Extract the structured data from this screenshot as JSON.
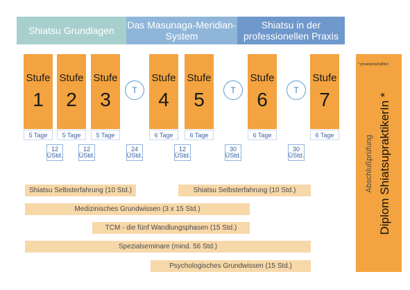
{
  "colors": {
    "phase1": "#a7cfcd",
    "phase2": "#8fb6d9",
    "phase3": "#6f98cc",
    "stage": "#f3a33f",
    "bar": "#f7d8a9",
    "circle": "#5a9bd3"
  },
  "phases": [
    {
      "label": "Shiatsu Grundlagen"
    },
    {
      "label": "Das Masunaga-Meridian-System"
    },
    {
      "label": "Shiatsu in der professionellen Praxis"
    }
  ],
  "stages": [
    {
      "label": "Stufe",
      "number": "1",
      "days": "5 Tage"
    },
    {
      "label": "Stufe",
      "number": "2",
      "days": "5 Tage"
    },
    {
      "label": "Stufe",
      "number": "3",
      "days": "5 Tage"
    },
    {
      "label": "Stufe",
      "number": "4",
      "days": "6 Tage"
    },
    {
      "label": "Stufe",
      "number": "5",
      "days": "6 Tage"
    },
    {
      "label": "Stufe",
      "number": "6",
      "days": "6 Tage"
    },
    {
      "label": "Stufe",
      "number": "7",
      "days": "6 Tage"
    }
  ],
  "circles": [
    "T",
    "T",
    "T"
  ],
  "hours": [
    {
      "num": "12",
      "unit": "ÜStd."
    },
    {
      "num": "12",
      "unit": "ÜStd."
    },
    {
      "num": "24",
      "unit": "ÜStd."
    },
    {
      "num": "12",
      "unit": "ÜStd."
    },
    {
      "num": "30",
      "unit": "ÜStd."
    },
    {
      "num": "30",
      "unit": "ÜStd."
    }
  ],
  "bars": [
    "Shiatsu Selbsterfahrung (10 Std.)",
    "Shiatsu Selbsterfahrung (10 Std.)",
    "Medizinisches Grundwissen (3 x 15 Std.)",
    "TCM - die fünf Wandlungsphasen (15 Std.)",
    "Spezialseminare (mind. 56 Std.)",
    "Psychologisches Grundwissen (15 Std.)"
  ],
  "diploma": {
    "note": "* privatwirtschaftlich",
    "exam": "Abschlußprüfung",
    "title": "Diplom ShiatsupraktikerIn *"
  }
}
